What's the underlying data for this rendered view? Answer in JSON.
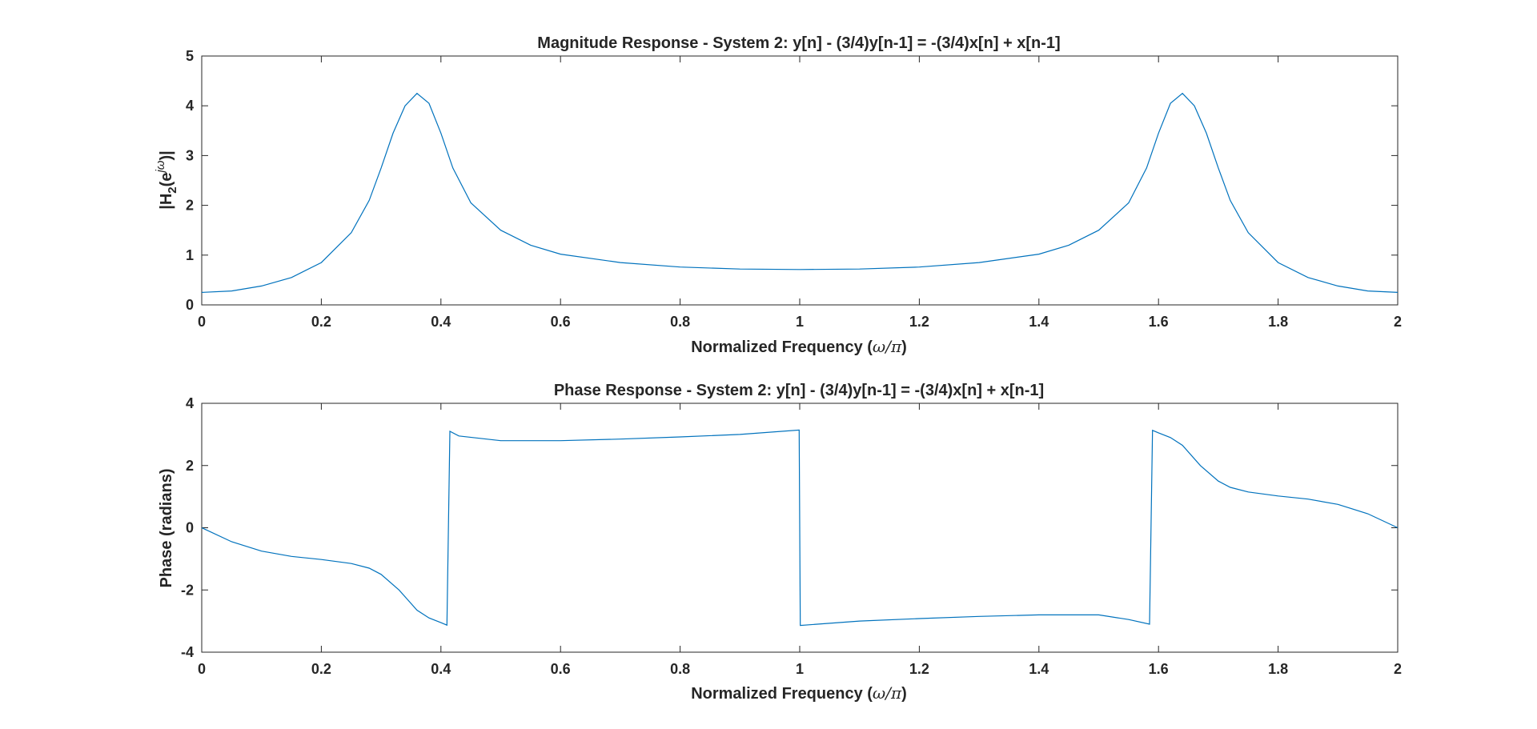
{
  "chart_data": [
    {
      "type": "line",
      "title": "Magnitude Response - System 2: y[n] - (3/4)y[n-1] = -(3/4)x[n] + x[n-1]",
      "xlabel_main": "Normalized Frequency (",
      "xlabel_symbol": "ω/π",
      "xlabel_end": ")",
      "ylabel_main": "|H",
      "ylabel_sub": "2",
      "ylabel_paren": "(e",
      "ylabel_sup": "jω",
      "ylabel_end": ")|",
      "xlim": [
        0,
        2
      ],
      "ylim": [
        0,
        5
      ],
      "xticks": [
        "0",
        "0.2",
        "0.4",
        "0.6",
        "0.8",
        "1",
        "1.2",
        "1.4",
        "1.6",
        "1.8",
        "2"
      ],
      "yticks": [
        "0",
        "1",
        "2",
        "3",
        "4",
        "5"
      ],
      "grid": false,
      "color": "#0072BD",
      "series": [
        {
          "x": [
            0,
            0.05,
            0.1,
            0.15,
            0.2,
            0.25,
            0.28,
            0.3,
            0.32,
            0.34,
            0.36,
            0.38,
            0.4,
            0.42,
            0.45,
            0.5,
            0.55,
            0.6,
            0.7,
            0.8,
            0.9,
            1.0,
            1.1,
            1.2,
            1.3,
            1.4,
            1.45,
            1.5,
            1.55,
            1.58,
            1.6,
            1.62,
            1.64,
            1.66,
            1.68,
            1.7,
            1.72,
            1.75,
            1.8,
            1.85,
            1.9,
            1.95,
            2.0
          ],
          "y": [
            0.25,
            0.28,
            0.38,
            0.55,
            0.85,
            1.45,
            2.1,
            2.75,
            3.45,
            4.0,
            4.25,
            4.05,
            3.45,
            2.75,
            2.05,
            1.5,
            1.2,
            1.02,
            0.85,
            0.76,
            0.72,
            0.71,
            0.72,
            0.76,
            0.85,
            1.02,
            1.2,
            1.5,
            2.05,
            2.75,
            3.45,
            4.05,
            4.25,
            4.0,
            3.45,
            2.75,
            2.1,
            1.45,
            0.85,
            0.55,
            0.38,
            0.28,
            0.25
          ]
        }
      ]
    },
    {
      "type": "line",
      "title": "Phase Response - System 2: y[n] - (3/4)y[n-1] = -(3/4)x[n] + x[n-1]",
      "xlabel_main": "Normalized Frequency (",
      "xlabel_symbol": "ω/π",
      "xlabel_end": ")",
      "ylabel": "Phase (radians)",
      "xlim": [
        0,
        2
      ],
      "ylim": [
        -4,
        4
      ],
      "xticks": [
        "0",
        "0.2",
        "0.4",
        "0.6",
        "0.8",
        "1",
        "1.2",
        "1.4",
        "1.6",
        "1.8",
        "2"
      ],
      "yticks": [
        "-4",
        "-2",
        "0",
        "2",
        "4"
      ],
      "grid": false,
      "color": "#0072BD",
      "series": [
        {
          "x": [
            0,
            0.05,
            0.1,
            0.15,
            0.2,
            0.25,
            0.28,
            0.3,
            0.33,
            0.36,
            0.38,
            0.4,
            0.41,
            0.415,
            0.43,
            0.5,
            0.6,
            0.7,
            0.8,
            0.9,
            0.999,
            1.001,
            1.1,
            1.2,
            1.3,
            1.4,
            1.5,
            1.55,
            1.585,
            1.59,
            1.6,
            1.62,
            1.64,
            1.67,
            1.7,
            1.72,
            1.75,
            1.8,
            1.85,
            1.9,
            1.95,
            2.0
          ],
          "y": [
            0,
            -0.45,
            -0.75,
            -0.92,
            -1.02,
            -1.15,
            -1.3,
            -1.5,
            -2.0,
            -2.65,
            -2.9,
            -3.05,
            -3.13,
            3.1,
            2.95,
            2.8,
            2.8,
            2.85,
            2.92,
            3.0,
            3.14,
            -3.14,
            -3.0,
            -2.92,
            -2.85,
            -2.8,
            -2.8,
            -2.95,
            -3.1,
            3.13,
            3.05,
            2.9,
            2.65,
            2.0,
            1.5,
            1.3,
            1.15,
            1.02,
            0.92,
            0.75,
            0.45,
            0
          ]
        }
      ]
    }
  ]
}
